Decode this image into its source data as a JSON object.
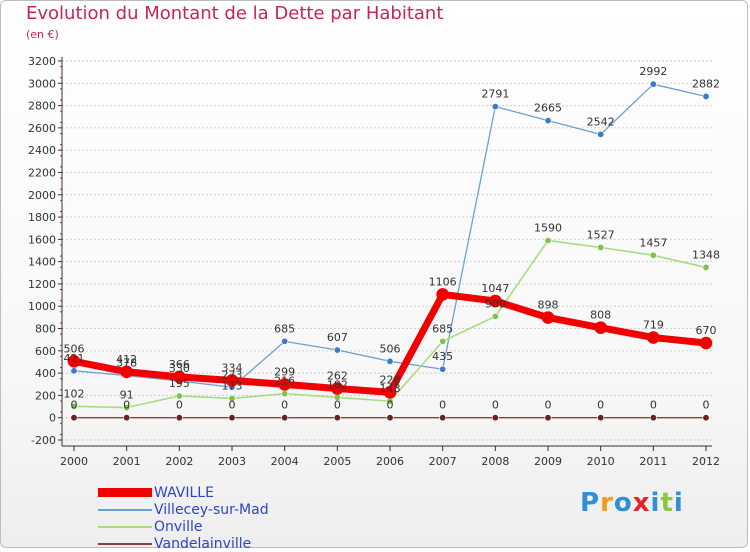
{
  "title": "Evolution du Montant de la Dette par Habitant",
  "subtitle": "(en €)",
  "brand": {
    "text": "Proxiti",
    "colors": [
      "#2f8fd8",
      "#f29b1c",
      "#2f8fd8",
      "#e7222e",
      "#2f8fd8",
      "#8dc63f",
      "#2f8fd8"
    ]
  },
  "chart_data": {
    "type": "line",
    "x": [
      2000,
      2001,
      2002,
      2003,
      2004,
      2005,
      2006,
      2007,
      2008,
      2009,
      2010,
      2011,
      2012
    ],
    "ylim": [
      -200,
      3200
    ],
    "yticks": [
      -200,
      0,
      200,
      400,
      600,
      800,
      1000,
      1200,
      1400,
      1600,
      1800,
      2000,
      2200,
      2400,
      2600,
      2800,
      3000,
      3200
    ],
    "grid": "horizontal dashed",
    "legend_position": "bottom-left",
    "series": [
      {
        "name": "Villecey-sur-Mad",
        "color": "#6f9fd2",
        "point_color": "#3a7cc7",
        "width": 1.3,
        "values": [
          421,
          378,
          330,
          273,
          685,
          607,
          506,
          435,
          2791,
          2665,
          2542,
          2992,
          2882
        ],
        "labels": [
          "421",
          "378",
          "330",
          "273",
          "685",
          "607",
          "506",
          "435",
          "2791",
          "2665",
          "2542",
          "2992",
          "2882"
        ]
      },
      {
        "name": "Onville",
        "color": "#a8dc80",
        "point_color": "#7cc44a",
        "width": 1.6,
        "values": [
          102,
          91,
          195,
          173,
          216,
          182,
          148,
          685,
          909,
          1590,
          1527,
          1457,
          1348
        ],
        "labels": [
          "102",
          "91",
          "195",
          "173",
          "216",
          "182",
          "148",
          "685",
          "909",
          "1590",
          "1527",
          "1457",
          "1348"
        ]
      },
      {
        "name": "Vandelainville",
        "color": "#8b4040",
        "point_color": "#6b1f1f",
        "width": 1.3,
        "values": [
          0,
          0,
          0,
          0,
          0,
          0,
          0,
          0,
          0,
          0,
          0,
          0,
          0
        ],
        "labels": [
          "0",
          "0",
          "0",
          "0",
          "0",
          "0",
          "0",
          "0",
          "0",
          "0",
          "0",
          "0",
          "0"
        ]
      },
      {
        "name": "WAVILLE",
        "color": "#f00000",
        "point_color": "#f00000",
        "width": 7,
        "values": [
          506,
          412,
          366,
          334,
          299,
          262,
          228,
          1106,
          1047,
          898,
          808,
          719,
          670
        ],
        "labels": [
          "506",
          "412",
          "366",
          "334",
          "299",
          "262",
          "228",
          "1106",
          "1047",
          "898",
          "808",
          "719",
          "670"
        ]
      }
    ],
    "legend_order": [
      "WAVILLE",
      "Villecey-sur-Mad",
      "Onville",
      "Vandelainville"
    ]
  }
}
